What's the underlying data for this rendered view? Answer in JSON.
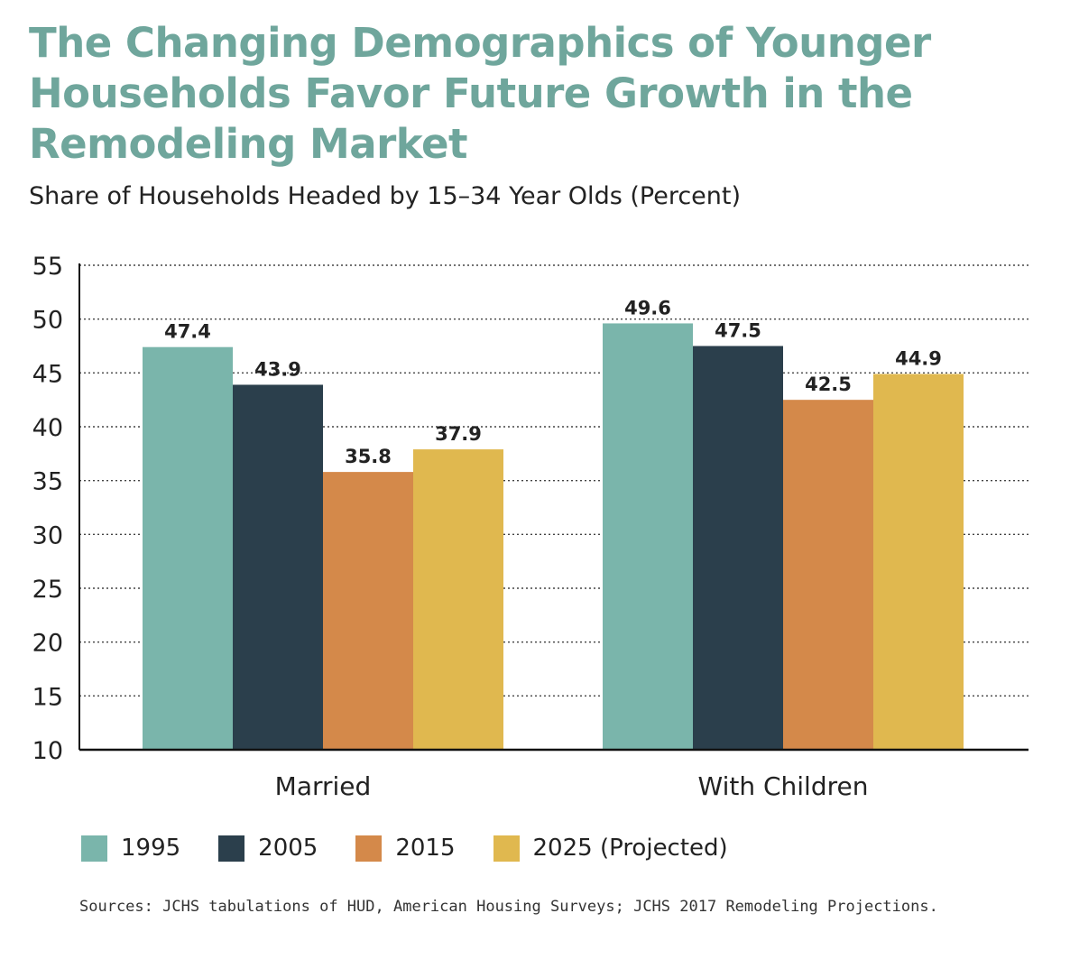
{
  "title": "The Changing Demographics of Younger Households Favor Future Growth in the Remodeling Market",
  "subtitle": "Share of Households Headed by 15–34 Year Olds (Percent)",
  "source": "Sources: JCHS tabulations of HUD, American Housing Surveys; JCHS 2017 Remodeling Projections.",
  "chart_data": {
    "type": "bar",
    "categories": [
      "Married",
      "With Children"
    ],
    "series": [
      {
        "name": "1995",
        "values": [
          47.4,
          49.6
        ],
        "color": "#7ab5ab"
      },
      {
        "name": "2005",
        "values": [
          43.9,
          47.5
        ],
        "color": "#2b3f4c"
      },
      {
        "name": "2015",
        "values": [
          35.8,
          42.5
        ],
        "color": "#d4894a"
      },
      {
        "name": "2025 (Projected)",
        "values": [
          37.9,
          44.9
        ],
        "color": "#e0b84f"
      }
    ],
    "ylim": [
      10,
      55
    ],
    "yticks": [
      10,
      15,
      20,
      25,
      30,
      35,
      40,
      45,
      50,
      55
    ],
    "grid": true,
    "legend": "bottom"
  }
}
